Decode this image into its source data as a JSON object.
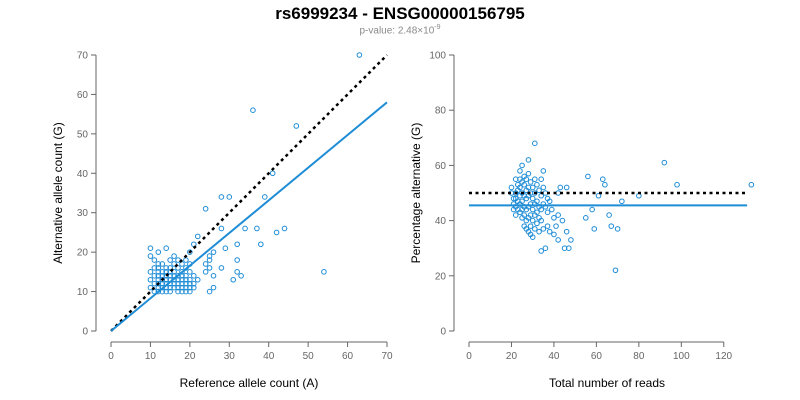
{
  "title": "rs6999234 - ENSG00000156795",
  "subtitle": {
    "prefix": "p-value: 2.48×10",
    "exponent": "-9"
  },
  "colors": {
    "points": "#1f8dd6",
    "fit": "#1f8dd6",
    "reference": "#000000"
  },
  "chart_data": [
    {
      "type": "scatter",
      "xlabel": "Reference allele count (A)",
      "ylabel": "Alternative allele count (G)",
      "xlim": [
        0,
        70
      ],
      "ylim": [
        0,
        70
      ],
      "xticks": [
        0,
        10,
        20,
        30,
        40,
        50,
        60,
        70
      ],
      "yticks": [
        0,
        10,
        20,
        30,
        40,
        50,
        60,
        70
      ],
      "fit_line": {
        "x": [
          0,
          70
        ],
        "y": [
          0,
          58
        ]
      },
      "reference_line": {
        "x": [
          0,
          70
        ],
        "y": [
          0,
          70
        ]
      },
      "points": [
        [
          10,
          11
        ],
        [
          10,
          13
        ],
        [
          10,
          15
        ],
        [
          10,
          19
        ],
        [
          10,
          21
        ],
        [
          11,
          10
        ],
        [
          11,
          12
        ],
        [
          11,
          14
        ],
        [
          11,
          16
        ],
        [
          11,
          18
        ],
        [
          12,
          10
        ],
        [
          12,
          11
        ],
        [
          12,
          12
        ],
        [
          12,
          13
        ],
        [
          12,
          14
        ],
        [
          12,
          15
        ],
        [
          12,
          16
        ],
        [
          12,
          17
        ],
        [
          12,
          20
        ],
        [
          13,
          10
        ],
        [
          13,
          11
        ],
        [
          13,
          12
        ],
        [
          13,
          13
        ],
        [
          13,
          14
        ],
        [
          13,
          15
        ],
        [
          13,
          17
        ],
        [
          14,
          10
        ],
        [
          14,
          11
        ],
        [
          14,
          12
        ],
        [
          14,
          13
        ],
        [
          14,
          14
        ],
        [
          14,
          15
        ],
        [
          14,
          16
        ],
        [
          14,
          21
        ],
        [
          15,
          10
        ],
        [
          15,
          11
        ],
        [
          15,
          12
        ],
        [
          15,
          13
        ],
        [
          15,
          14
        ],
        [
          15,
          15
        ],
        [
          15,
          16
        ],
        [
          15,
          18
        ],
        [
          16,
          11
        ],
        [
          16,
          12
        ],
        [
          16,
          13
        ],
        [
          16,
          14
        ],
        [
          16,
          15
        ],
        [
          16,
          17
        ],
        [
          16,
          19
        ],
        [
          17,
          10
        ],
        [
          17,
          11
        ],
        [
          17,
          12
        ],
        [
          17,
          13
        ],
        [
          17,
          14
        ],
        [
          17,
          16
        ],
        [
          17,
          18
        ],
        [
          18,
          10
        ],
        [
          18,
          11
        ],
        [
          18,
          12
        ],
        [
          18,
          13
        ],
        [
          18,
          14
        ],
        [
          18,
          15
        ],
        [
          18,
          17
        ],
        [
          19,
          10
        ],
        [
          19,
          11
        ],
        [
          19,
          12
        ],
        [
          19,
          13
        ],
        [
          19,
          14
        ],
        [
          19,
          16
        ],
        [
          19,
          18
        ],
        [
          20,
          10
        ],
        [
          20,
          11
        ],
        [
          20,
          12
        ],
        [
          20,
          13
        ],
        [
          20,
          15
        ],
        [
          20,
          17
        ],
        [
          20,
          20
        ],
        [
          21,
          11
        ],
        [
          21,
          12
        ],
        [
          21,
          14
        ],
        [
          21,
          22
        ],
        [
          22,
          13
        ],
        [
          22,
          24
        ],
        [
          24,
          15
        ],
        [
          24,
          17
        ],
        [
          24,
          31
        ],
        [
          25,
          10
        ],
        [
          25,
          16
        ],
        [
          25,
          18
        ],
        [
          25,
          19
        ],
        [
          26,
          11
        ],
        [
          26,
          14
        ],
        [
          26,
          20
        ],
        [
          28,
          16
        ],
        [
          28,
          26
        ],
        [
          28,
          34
        ],
        [
          29,
          21
        ],
        [
          30,
          34
        ],
        [
          31,
          13
        ],
        [
          32,
          15
        ],
        [
          32,
          18
        ],
        [
          32,
          22
        ],
        [
          33,
          14
        ],
        [
          34,
          26
        ],
        [
          36,
          56
        ],
        [
          37,
          26
        ],
        [
          38,
          22
        ],
        [
          39,
          34
        ],
        [
          41,
          40
        ],
        [
          42,
          25
        ],
        [
          44,
          26
        ],
        [
          47,
          52
        ],
        [
          54,
          15
        ],
        [
          63,
          70
        ]
      ]
    },
    {
      "type": "scatter",
      "xlabel": "Total number of reads",
      "ylabel": "Percentage alternative (G)",
      "xlim": [
        0,
        130
      ],
      "ylim": [
        0,
        100
      ],
      "xticks": [
        0,
        20,
        40,
        60,
        80,
        100,
        120
      ],
      "yticks": [
        0,
        20,
        40,
        60,
        80,
        100
      ],
      "fit_line": {
        "x": [
          0,
          131
        ],
        "y": [
          45.5,
          45.5
        ]
      },
      "reference_line": {
        "x": [
          0,
          131
        ],
        "y": [
          50,
          50
        ]
      },
      "points": [
        [
          20,
          52
        ],
        [
          20,
          50
        ],
        [
          21,
          48
        ],
        [
          21,
          46
        ],
        [
          21,
          44
        ],
        [
          22,
          55
        ],
        [
          22,
          50
        ],
        [
          22,
          48
        ],
        [
          22,
          45
        ],
        [
          22,
          42
        ],
        [
          23,
          53
        ],
        [
          23,
          51
        ],
        [
          23,
          47
        ],
        [
          23,
          44
        ],
        [
          24,
          58
        ],
        [
          24,
          55
        ],
        [
          24,
          52
        ],
        [
          24,
          49
        ],
        [
          24,
          46
        ],
        [
          24,
          43
        ],
        [
          25,
          60
        ],
        [
          25,
          54
        ],
        [
          25,
          50
        ],
        [
          25,
          47
        ],
        [
          25,
          44
        ],
        [
          25,
          41
        ],
        [
          26,
          56
        ],
        [
          26,
          53
        ],
        [
          26,
          49
        ],
        [
          26,
          45
        ],
        [
          26,
          42
        ],
        [
          26,
          38
        ],
        [
          27,
          55
        ],
        [
          27,
          51
        ],
        [
          27,
          48
        ],
        [
          27,
          44
        ],
        [
          27,
          40
        ],
        [
          27,
          37
        ],
        [
          28,
          62
        ],
        [
          28,
          57
        ],
        [
          28,
          52
        ],
        [
          28,
          49
        ],
        [
          28,
          45
        ],
        [
          28,
          41
        ],
        [
          28,
          36
        ],
        [
          29,
          54
        ],
        [
          29,
          50
        ],
        [
          29,
          46
        ],
        [
          29,
          42
        ],
        [
          29,
          38
        ],
        [
          29,
          35
        ],
        [
          30,
          52
        ],
        [
          30,
          48
        ],
        [
          30,
          44
        ],
        [
          30,
          40
        ],
        [
          30,
          34
        ],
        [
          31,
          68
        ],
        [
          31,
          55
        ],
        [
          31,
          50
        ],
        [
          31,
          46
        ],
        [
          31,
          42
        ],
        [
          31,
          37
        ],
        [
          32,
          53
        ],
        [
          32,
          47
        ],
        [
          32,
          43
        ],
        [
          32,
          39
        ],
        [
          33,
          51
        ],
        [
          33,
          45
        ],
        [
          33,
          41
        ],
        [
          33,
          36
        ],
        [
          34,
          55
        ],
        [
          34,
          49
        ],
        [
          34,
          44
        ],
        [
          34,
          40
        ],
        [
          34,
          29
        ],
        [
          35,
          58
        ],
        [
          35,
          52
        ],
        [
          35,
          46
        ],
        [
          35,
          37
        ],
        [
          36,
          50
        ],
        [
          36,
          45
        ],
        [
          36,
          30
        ],
        [
          37,
          48
        ],
        [
          37,
          43
        ],
        [
          37,
          38
        ],
        [
          38,
          47
        ],
        [
          38,
          36
        ],
        [
          39,
          44
        ],
        [
          40,
          41
        ],
        [
          40,
          35
        ],
        [
          41,
          38
        ],
        [
          42,
          50
        ],
        [
          42,
          42
        ],
        [
          42,
          33
        ],
        [
          43,
          52
        ],
        [
          44,
          40
        ],
        [
          45,
          30
        ],
        [
          46,
          52
        ],
        [
          46,
          36
        ],
        [
          47,
          30
        ],
        [
          48,
          33
        ],
        [
          55,
          41
        ],
        [
          56,
          56
        ],
        [
          58,
          44
        ],
        [
          59,
          37
        ],
        [
          61,
          49
        ],
        [
          63,
          55
        ],
        [
          64,
          53
        ],
        [
          66,
          42
        ],
        [
          67,
          38
        ],
        [
          69,
          22
        ],
        [
          70,
          37
        ],
        [
          72,
          47
        ],
        [
          80,
          49
        ],
        [
          92,
          61
        ],
        [
          98,
          53
        ],
        [
          133,
          53
        ]
      ]
    }
  ]
}
